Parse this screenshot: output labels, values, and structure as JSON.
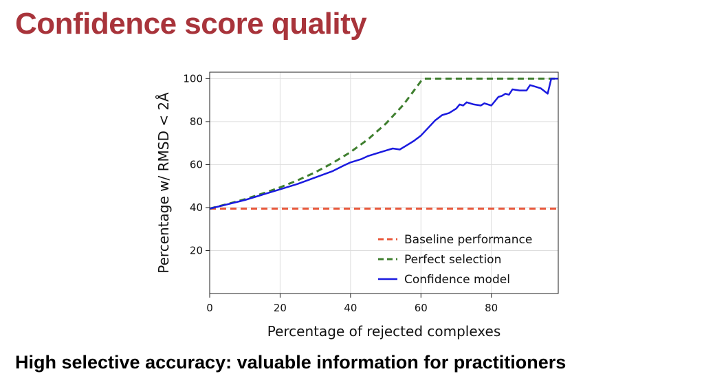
{
  "slide": {
    "title": "Confidence score quality",
    "subtitle": "High selective accuracy: valuable information for practitioners"
  },
  "chart_data": {
    "type": "line",
    "title": "",
    "xlabel": "Percentage of rejected complexes",
    "ylabel": "Percentage w/ RMSD < 2Å",
    "xlim": [
      0,
      99
    ],
    "ylim": [
      0,
      103
    ],
    "xticks": [
      0,
      20,
      40,
      60,
      80
    ],
    "yticks": [
      20,
      40,
      60,
      80,
      100
    ],
    "grid": true,
    "legend_position": "lower-right",
    "series": [
      {
        "name": "Baseline performance",
        "style": "dashed",
        "color": "#e8573a",
        "x": [
          0,
          99
        ],
        "y": [
          39.5,
          39.5
        ]
      },
      {
        "name": "Perfect selection",
        "style": "dashed",
        "color": "#3f7f2f",
        "x": [
          0,
          5,
          10,
          15,
          20,
          25,
          30,
          35,
          40,
          45,
          50,
          55,
          60,
          61,
          70,
          80,
          90,
          99
        ],
        "y": [
          39.5,
          41.6,
          43.9,
          46.5,
          49.4,
          52.7,
          56.4,
          60.8,
          65.8,
          71.8,
          79.0,
          87.8,
          98.8,
          100,
          100,
          100,
          100,
          100
        ]
      },
      {
        "name": "Confidence model",
        "style": "solid",
        "color": "#1a1adf",
        "x": [
          0,
          5,
          10,
          15,
          20,
          25,
          30,
          35,
          38,
          40,
          43,
          45,
          48,
          50,
          52,
          54,
          56,
          58,
          60,
          62,
          64,
          66,
          68,
          70,
          71,
          72,
          73,
          75,
          77,
          78,
          80,
          82,
          83,
          84,
          85,
          86,
          88,
          90,
          91,
          92,
          94,
          96,
          97,
          98,
          99
        ],
        "y": [
          39.5,
          41.5,
          43.5,
          46,
          48.5,
          51,
          54,
          57,
          59.5,
          61,
          62.5,
          64,
          65.5,
          66.5,
          67.5,
          67,
          69,
          71,
          73.5,
          77,
          80.5,
          83,
          84,
          86,
          88,
          87.5,
          89,
          88,
          87.5,
          88.5,
          87.5,
          91.5,
          92,
          93,
          92.5,
          95,
          94.5,
          94.5,
          97,
          96.5,
          95.5,
          93,
          100,
          100,
          100
        ]
      }
    ]
  }
}
